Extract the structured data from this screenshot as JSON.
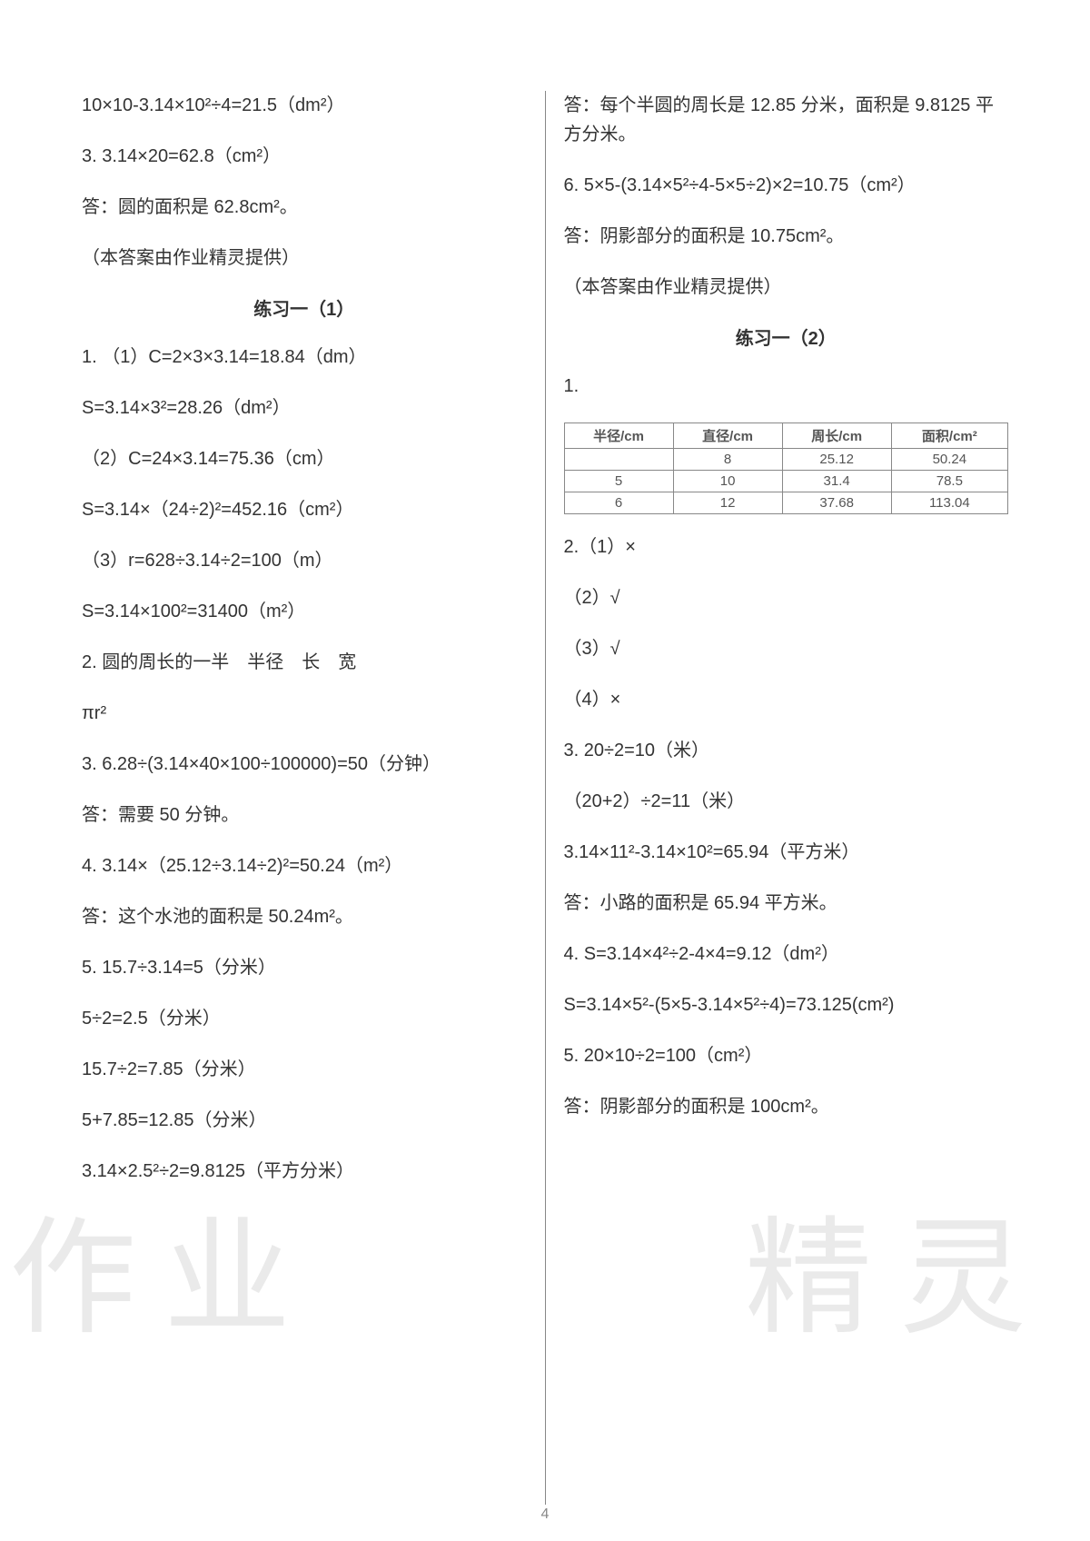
{
  "left": {
    "lines": [
      "10×10-3.14×10²÷4=21.5（dm²）",
      "3. 3.14×20=62.8（cm²）",
      "答：圆的面积是 62.8cm²。",
      "（本答案由作业精灵提供）"
    ],
    "section_title": "练习一（1）",
    "lines2": [
      "1. （1）C=2×3×3.14=18.84（dm）",
      "S=3.14×3²=28.26（dm²）",
      "（2）C=24×3.14=75.36（cm）",
      "S=3.14×（24÷2)²=452.16（cm²）",
      "（3）r=628÷3.14÷2=100（m）",
      "S=3.14×100²=31400（m²）",
      "2. 圆的周长的一半　半径　长　宽",
      "πr²",
      "3. 6.28÷(3.14×40×100÷100000)=50（分钟）",
      "答：需要 50 分钟。",
      "4. 3.14×（25.12÷3.14÷2)²=50.24（m²）",
      "答：这个水池的面积是 50.24m²。",
      "5. 15.7÷3.14=5（分米）",
      "5÷2=2.5（分米）",
      "15.7÷2=7.85（分米）",
      "5+7.85=12.85（分米）",
      "3.14×2.5²÷2=9.8125（平方分米）"
    ]
  },
  "right": {
    "lines": [
      "答：每个半圆的周长是 12.85 分米，面积是 9.8125 平方分米。",
      "6. 5×5-(3.14×5²÷4-5×5÷2)×2=10.75（cm²）",
      "答：阴影部分的面积是 10.75cm²。",
      "（本答案由作业精灵提供）"
    ],
    "section_title": "练习一（2）",
    "table": {
      "headers": [
        "半径/cm",
        "直径/cm",
        "周长/cm",
        "面积/cm²"
      ],
      "rows": [
        [
          "",
          "8",
          "25.12",
          "50.24"
        ],
        [
          "5",
          "10",
          "31.4",
          "78.5"
        ],
        [
          "6",
          "12",
          "37.68",
          "113.04"
        ]
      ]
    },
    "lines2": [
      "1.",
      "2.（1）×",
      "（2）√",
      "（3）√",
      "（4）×",
      "3. 20÷2=10（米）",
      "（20+2）÷2=11（米）",
      "3.14×11²-3.14×10²=65.94（平方米）",
      "答：小路的面积是 65.94 平方米。",
      "4. S=3.14×4²÷2-4×4=9.12（dm²）",
      "S=3.14×5²-(5×5-3.14×5²÷4)=73.125(cm²)",
      "5. 20×10÷2=100（cm²）",
      "答：阴影部分的面积是 100cm²。"
    ]
  },
  "watermarks": {
    "left": "作业",
    "right": "精灵"
  },
  "page_number": "4"
}
